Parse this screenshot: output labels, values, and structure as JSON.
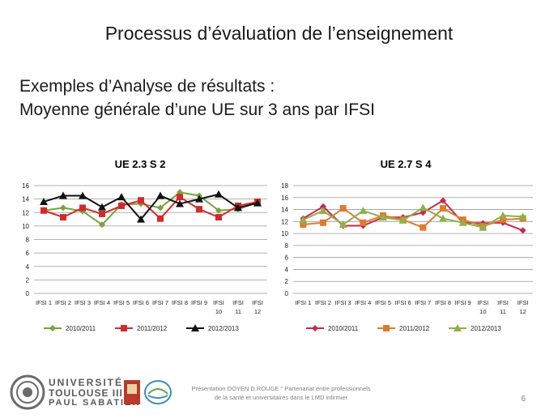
{
  "slide": {
    "title": "Processus d’évaluation de l’enseignement",
    "subtitle_line1": "Exemples d’Analyse de résultats :",
    "subtitle_line2": "Moyenne générale d’une UE sur 3 ans par IFSI",
    "footer_text": "Présentation DOYEN D.ROUGE \" Partenariat entre professionnels de la santé et universitaires dans le LMD infirmier",
    "page_number": "6"
  },
  "logo": {
    "line1": "UNIVERSITÉ",
    "line2": "TOULOUSE III",
    "line3": "PAUL SABATIER"
  },
  "chart_data": [
    {
      "type": "line",
      "title": "UE 2.3 S 2",
      "categories": [
        "IFSI 1",
        "IFSI 2",
        "IFSI 3",
        "IFSI 4",
        "IFSI 5",
        "IFSI 6",
        "IFSI 7",
        "IFSI 8",
        "IFSI 9",
        "IFSI 10",
        "IFSI 11",
        "IFSI 12"
      ],
      "ylim": [
        0,
        16
      ],
      "yticks": [
        0,
        2,
        4,
        6,
        8,
        10,
        12,
        14,
        16
      ],
      "grid": true,
      "legend": "bottom",
      "series": [
        {
          "name": "2010/2011",
          "color": "#77a33c",
          "marker": "diamond",
          "values": [
            12.3,
            12.7,
            12.2,
            10.2,
            13.2,
            13.3,
            12.7,
            15.0,
            14.5,
            12.3,
            12.5,
            13.5
          ]
        },
        {
          "name": "2011/2012",
          "color": "#d42a2a",
          "marker": "square",
          "values": [
            12.3,
            11.3,
            12.7,
            11.8,
            13.0,
            13.8,
            11.1,
            14.3,
            12.5,
            11.3,
            13.0,
            13.6
          ]
        },
        {
          "name": "2012/2013",
          "color": "#111111",
          "marker": "triangle",
          "values": [
            13.6,
            14.5,
            14.5,
            12.8,
            14.3,
            11.0,
            14.5,
            13.3,
            14.0,
            14.7,
            12.7,
            13.4
          ]
        }
      ]
    },
    {
      "type": "line",
      "title": "UE 2.7 S 4",
      "categories": [
        "IFSI 1",
        "IFSI 2",
        "IFSI 3",
        "IFSI 4",
        "IFSI 5",
        "IFSI 6",
        "IFSI 7",
        "IFSI 8",
        "IFSI 9",
        "IFSI 10",
        "IFSI 11",
        "IFSI 12"
      ],
      "ylim": [
        0,
        18
      ],
      "yticks": [
        0,
        2,
        4,
        6,
        8,
        10,
        12,
        14,
        16,
        18
      ],
      "grid": true,
      "legend": "bottom",
      "series": [
        {
          "name": "2010/2011",
          "color": "#c8284a",
          "marker": "diamond",
          "values": [
            12.5,
            14.5,
            11.3,
            11.3,
            12.7,
            12.7,
            13.5,
            15.5,
            11.8,
            11.7,
            11.8,
            10.5
          ]
        },
        {
          "name": "2011/2012",
          "color": "#e07a2e",
          "marker": "square",
          "values": [
            11.5,
            11.8,
            14.2,
            11.8,
            13.0,
            12.3,
            11.0,
            14.2,
            12.3,
            11.2,
            12.3,
            12.5
          ]
        },
        {
          "name": "2012/2013",
          "color": "#8fb04a",
          "marker": "triangle",
          "values": [
            12.3,
            13.8,
            11.5,
            13.8,
            12.7,
            12.2,
            14.3,
            12.5,
            11.8,
            11.0,
            13.0,
            12.8
          ]
        }
      ]
    }
  ]
}
